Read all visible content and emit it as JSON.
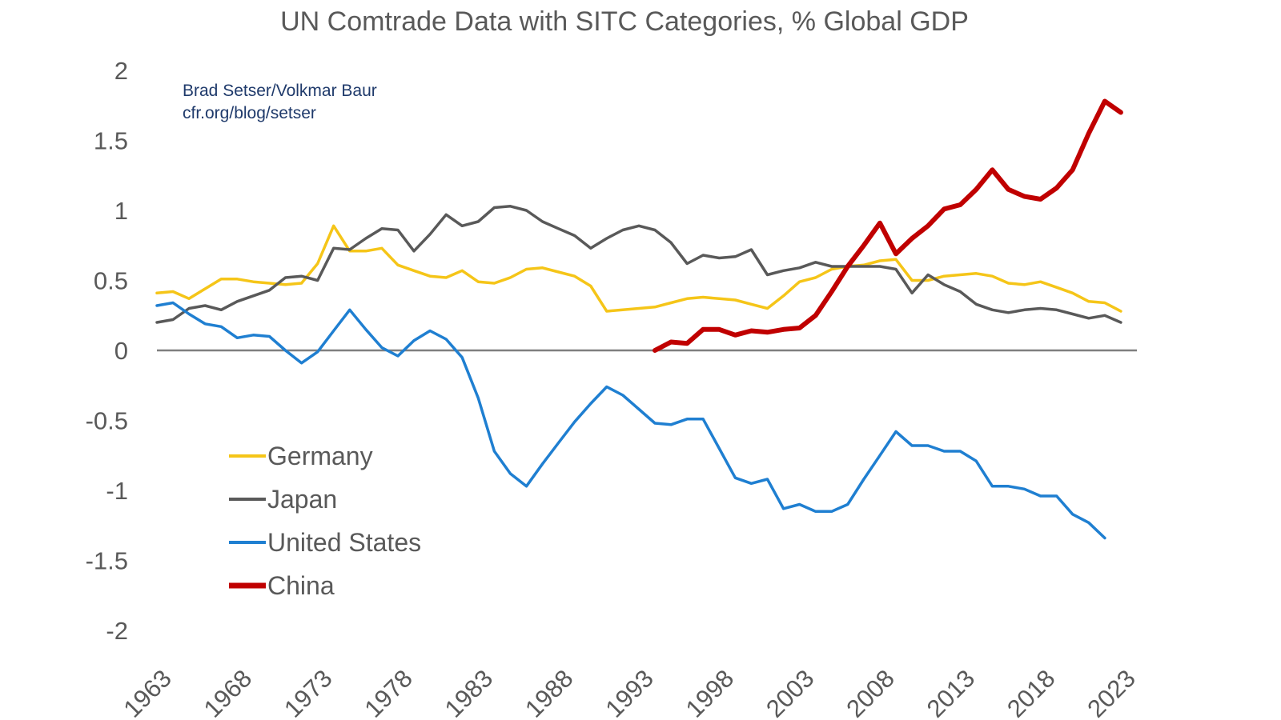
{
  "subtitle": "UN Comtrade Data with SITC Categories, % Global GDP",
  "source": {
    "line1": "Brad Setser/Volkmar Baur",
    "line2": "cfr.org/blog/setser"
  },
  "chart_data": {
    "type": "line",
    "ylim": [
      -2,
      2
    ],
    "yticks": [
      2,
      1.5,
      1,
      0.5,
      0,
      -0.5,
      -1,
      -1.5,
      -2
    ],
    "ytick_labels": [
      "2",
      "1.5",
      "1",
      "0.5",
      "0",
      "-0.5",
      "-1",
      "-1.5",
      "-2"
    ],
    "xlim": [
      1963,
      2024
    ],
    "xticks": [
      1963,
      1968,
      1973,
      1978,
      1983,
      1988,
      1993,
      1998,
      2003,
      2008,
      2013,
      2018,
      2023
    ],
    "xtick_labels": [
      "1963",
      "1968",
      "1973",
      "1978",
      "1983",
      "1988",
      "1993",
      "1998",
      "2003",
      "2008",
      "2013",
      "2018",
      "2023"
    ],
    "legend_position": "bottom-left",
    "series": [
      {
        "name": "Germany",
        "color": "#f5c518",
        "x": [
          1963,
          1964,
          1965,
          1966,
          1967,
          1968,
          1969,
          1970,
          1971,
          1972,
          1973,
          1974,
          1975,
          1976,
          1977,
          1978,
          1979,
          1980,
          1981,
          1982,
          1983,
          1984,
          1985,
          1986,
          1987,
          1988,
          1989,
          1990,
          1991,
          1992,
          1993,
          1994,
          1995,
          1996,
          1997,
          1998,
          1999,
          2000,
          2001,
          2002,
          2003,
          2004,
          2005,
          2006,
          2007,
          2008,
          2009,
          2010,
          2011,
          2012,
          2013,
          2014,
          2015,
          2016,
          2017,
          2018,
          2019,
          2020,
          2021,
          2022,
          2023
        ],
        "values": [
          0.41,
          0.42,
          0.37,
          0.44,
          0.51,
          0.51,
          0.49,
          0.48,
          0.47,
          0.48,
          0.62,
          0.89,
          0.71,
          0.71,
          0.73,
          0.61,
          0.57,
          0.53,
          0.52,
          0.57,
          0.49,
          0.48,
          0.52,
          0.58,
          0.59,
          0.56,
          0.53,
          0.46,
          0.28,
          0.29,
          0.3,
          0.31,
          0.34,
          0.37,
          0.38,
          0.37,
          0.36,
          0.33,
          0.3,
          0.39,
          0.49,
          0.52,
          0.58,
          0.6,
          0.61,
          0.64,
          0.65,
          0.5,
          0.5,
          0.53,
          0.54,
          0.55,
          0.53,
          0.48,
          0.47,
          0.49,
          0.45,
          0.41,
          0.35,
          0.34,
          0.28
        ]
      },
      {
        "name": "Japan",
        "color": "#595959",
        "x": [
          1963,
          1964,
          1965,
          1966,
          1967,
          1968,
          1969,
          1970,
          1971,
          1972,
          1973,
          1974,
          1975,
          1976,
          1977,
          1978,
          1979,
          1980,
          1981,
          1982,
          1983,
          1984,
          1985,
          1986,
          1987,
          1988,
          1989,
          1990,
          1991,
          1992,
          1993,
          1994,
          1995,
          1996,
          1997,
          1998,
          1999,
          2000,
          2001,
          2002,
          2003,
          2004,
          2005,
          2006,
          2007,
          2008,
          2009,
          2010,
          2011,
          2012,
          2013,
          2014,
          2015,
          2016,
          2017,
          2018,
          2019,
          2020,
          2021,
          2022,
          2023
        ],
        "values": [
          0.2,
          0.22,
          0.3,
          0.32,
          0.29,
          0.35,
          0.39,
          0.43,
          0.52,
          0.53,
          0.5,
          0.73,
          0.72,
          0.8,
          0.87,
          0.86,
          0.71,
          0.83,
          0.97,
          0.89,
          0.92,
          1.02,
          1.03,
          1.0,
          0.92,
          0.87,
          0.82,
          0.73,
          0.8,
          0.86,
          0.89,
          0.86,
          0.77,
          0.62,
          0.68,
          0.66,
          0.67,
          0.72,
          0.54,
          0.57,
          0.59,
          0.63,
          0.6,
          0.6,
          0.6,
          0.6,
          0.58,
          0.41,
          0.54,
          0.47,
          0.42,
          0.33,
          0.29,
          0.27,
          0.29,
          0.3,
          0.29,
          0.26,
          0.23,
          0.25,
          0.2
        ]
      },
      {
        "name": "United States",
        "color": "#1f7fd1",
        "x": [
          1963,
          1964,
          1965,
          1966,
          1967,
          1968,
          1969,
          1970,
          1971,
          1972,
          1973,
          1974,
          1975,
          1976,
          1977,
          1978,
          1979,
          1980,
          1981,
          1982,
          1983,
          1984,
          1985,
          1986,
          1987,
          1988,
          1989,
          1990,
          1991,
          1992,
          1993,
          1994,
          1995,
          1996,
          1997,
          1998,
          1999,
          2000,
          2001,
          2002,
          2003,
          2004,
          2005,
          2006,
          2007,
          2008,
          2009,
          2010,
          2011,
          2012,
          2013,
          2014,
          2015,
          2016,
          2017,
          2018,
          2019,
          2020,
          2021,
          2022
        ],
        "values": [
          0.32,
          0.34,
          0.26,
          0.19,
          0.17,
          0.09,
          0.11,
          0.1,
          0.0,
          -0.09,
          -0.01,
          0.14,
          0.29,
          0.15,
          0.02,
          -0.04,
          0.07,
          0.14,
          0.08,
          -0.05,
          -0.34,
          -0.72,
          -0.88,
          -0.97,
          -0.81,
          -0.66,
          -0.51,
          -0.38,
          -0.26,
          -0.32,
          -0.42,
          -0.52,
          -0.53,
          -0.49,
          -0.49,
          -0.7,
          -0.91,
          -0.95,
          -0.92,
          -1.13,
          -1.1,
          -1.15,
          -1.15,
          -1.1,
          -0.92,
          -0.75,
          -0.58,
          -0.68,
          -0.68,
          -0.72,
          -0.72,
          -0.79,
          -0.97,
          -0.97,
          -0.99,
          -1.04,
          -1.04,
          -1.17,
          -1.23,
          -1.34
        ]
      },
      {
        "name": "China",
        "color": "#c00000",
        "x": [
          1994,
          1995,
          1996,
          1997,
          1998,
          1999,
          2000,
          2001,
          2002,
          2003,
          2004,
          2005,
          2006,
          2007,
          2008,
          2009,
          2010,
          2011,
          2012,
          2013,
          2014,
          2015,
          2016,
          2017,
          2018,
          2019,
          2020,
          2021,
          2022,
          2023
        ],
        "values": [
          0.0,
          0.06,
          0.05,
          0.15,
          0.15,
          0.11,
          0.14,
          0.13,
          0.15,
          0.16,
          0.25,
          0.42,
          0.6,
          0.75,
          0.91,
          0.69,
          0.8,
          0.89,
          1.01,
          1.04,
          1.15,
          1.29,
          1.15,
          1.1,
          1.08,
          1.16,
          1.29,
          1.55,
          1.78,
          1.7
        ]
      }
    ]
  }
}
